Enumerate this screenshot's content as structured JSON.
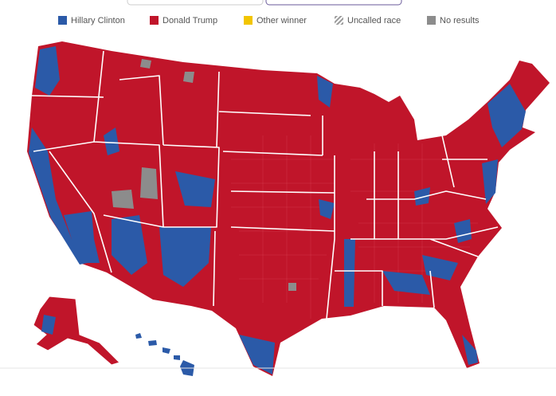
{
  "legend": {
    "items": [
      {
        "label": "Hillary Clinton",
        "color": "#2b5aa8"
      },
      {
        "label": "Donald Trump",
        "color": "#c0152a"
      },
      {
        "label": "Other winner",
        "color": "#f2c500"
      },
      {
        "label": "Uncalled race",
        "color": "#9a9a9a"
      },
      {
        "label": "No results",
        "color": "#8c8c8c"
      }
    ]
  }
}
